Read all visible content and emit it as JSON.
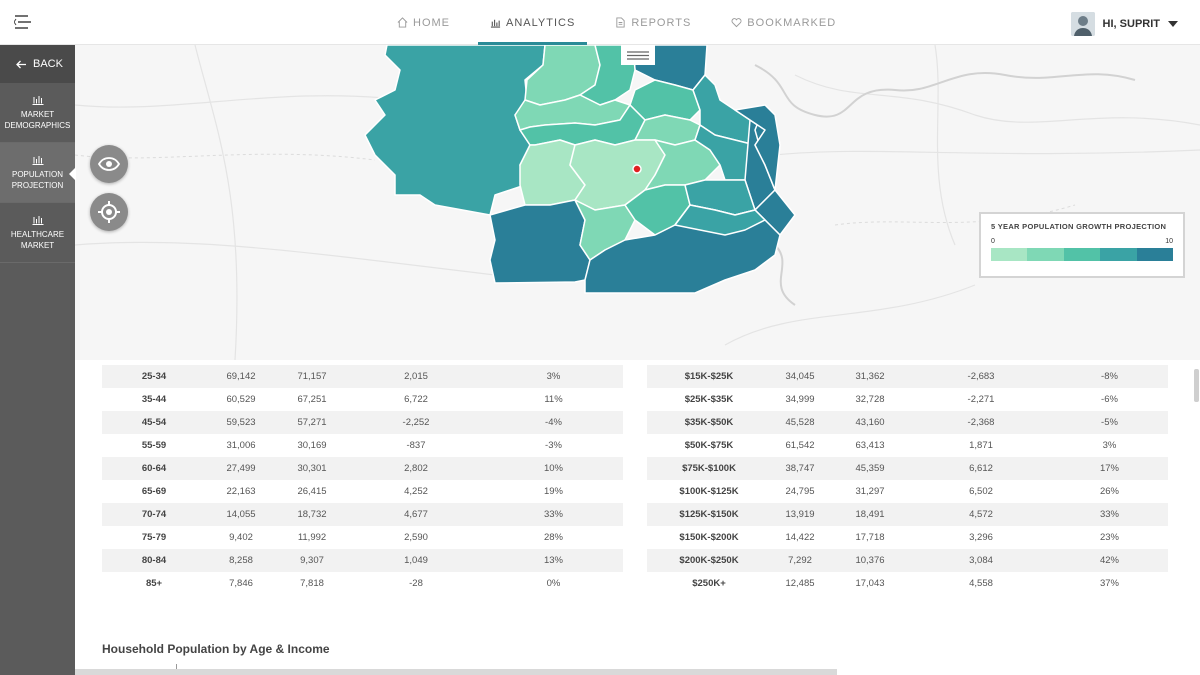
{
  "nav": {
    "items": [
      {
        "label": "HOME",
        "icon": "home-icon"
      },
      {
        "label": "ANALYTICS",
        "icon": "bar-chart-icon",
        "active": true
      },
      {
        "label": "REPORTS",
        "icon": "document-icon"
      },
      {
        "label": "BOOKMARKED",
        "icon": "heart-icon"
      }
    ],
    "user_greeting": "HI, SUPRIT"
  },
  "sidebar": {
    "back_label": "BACK",
    "items": [
      {
        "label_line1": "MARKET",
        "label_line2": "DEMOGRAPHICS",
        "icon": "bar-chart-icon"
      },
      {
        "label_line1": "POPULATION",
        "label_line2": "PROJECTION",
        "icon": "bar-chart-icon",
        "active": true
      },
      {
        "label_line1": "HEALTHCARE",
        "label_line2": "MARKET",
        "icon": "bar-chart-icon"
      }
    ]
  },
  "legend": {
    "title": "5 YEAR POPULATION GROWTH PROJECTION",
    "min": "0",
    "max": "10",
    "colors": [
      "#a8e6c4",
      "#7fd8b5",
      "#52c2a7",
      "#3aa3a5",
      "#2a7f98"
    ]
  },
  "age_table": {
    "rows": [
      [
        "25-34",
        "69,142",
        "71,157",
        "2,015",
        "3%"
      ],
      [
        "35-44",
        "60,529",
        "67,251",
        "6,722",
        "11%"
      ],
      [
        "45-54",
        "59,523",
        "57,271",
        "-2,252",
        "-4%"
      ],
      [
        "55-59",
        "31,006",
        "30,169",
        "-837",
        "-3%"
      ],
      [
        "60-64",
        "27,499",
        "30,301",
        "2,802",
        "10%"
      ],
      [
        "65-69",
        "22,163",
        "26,415",
        "4,252",
        "19%"
      ],
      [
        "70-74",
        "14,055",
        "18,732",
        "4,677",
        "33%"
      ],
      [
        "75-79",
        "9,402",
        "11,992",
        "2,590",
        "28%"
      ],
      [
        "80-84",
        "8,258",
        "9,307",
        "1,049",
        "13%"
      ],
      [
        "85+",
        "7,846",
        "7,818",
        "-28",
        "0%"
      ]
    ]
  },
  "income_table": {
    "rows": [
      [
        "$15K-$25K",
        "34,045",
        "31,362",
        "-2,683",
        "-8%"
      ],
      [
        "$25K-$35K",
        "34,999",
        "32,728",
        "-2,271",
        "-6%"
      ],
      [
        "$35K-$50K",
        "45,528",
        "43,160",
        "-2,368",
        "-5%"
      ],
      [
        "$50K-$75K",
        "61,542",
        "63,413",
        "1,871",
        "3%"
      ],
      [
        "$75K-$100K",
        "38,747",
        "45,359",
        "6,612",
        "17%"
      ],
      [
        "$100K-$125K",
        "24,795",
        "31,297",
        "6,502",
        "26%"
      ],
      [
        "$125K-$150K",
        "13,919",
        "18,491",
        "4,572",
        "33%"
      ],
      [
        "$150K-$200K",
        "14,422",
        "17,718",
        "3,296",
        "23%"
      ],
      [
        "$200K-$250K",
        "7,292",
        "10,376",
        "3,084",
        "42%"
      ],
      [
        "$250K+",
        "12,485",
        "17,043",
        "4,558",
        "37%"
      ]
    ]
  },
  "section_title": "Household Population by Age & Income"
}
